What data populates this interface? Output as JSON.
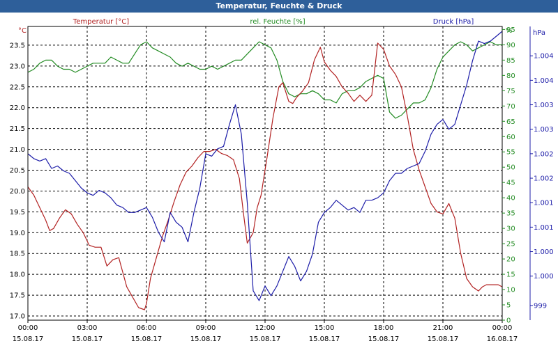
{
  "window": {
    "title": "Temperatur, Feuchte & Druck"
  },
  "chart_data": {
    "type": "line",
    "title": "Temperatur, Feuchte & Druck",
    "grid": true,
    "x_ticks": [
      {
        "time": "00:00",
        "date": "15.08.17"
      },
      {
        "time": "03:00",
        "date": "15.08.17"
      },
      {
        "time": "06:00",
        "date": "15.08.17"
      },
      {
        "time": "09:00",
        "date": "15.08.17"
      },
      {
        "time": "12:00",
        "date": "15.08.17"
      },
      {
        "time": "15:00",
        "date": "15.08.17"
      },
      {
        "time": "18:00",
        "date": "15.08.17"
      },
      {
        "time": "21:00",
        "date": "15.08.17"
      },
      {
        "time": "00:00",
        "date": "16.08.17"
      }
    ],
    "x_range_hours": [
      0,
      24
    ],
    "axes": {
      "temperature": {
        "label": "Temperatur [°C]",
        "unit": "°C",
        "range": [
          16.9,
          23.95
        ],
        "ticks": [
          "17.0",
          "17.5",
          "18.0",
          "18.5",
          "19.0",
          "19.5",
          "20.0",
          "20.5",
          "21.0",
          "21.5",
          "22.0",
          "22.5",
          "23.0",
          "23.5"
        ],
        "color": "#b22222"
      },
      "humidity": {
        "label": "rel. Feuchte [%]",
        "unit": "%",
        "range": [
          0,
          96
        ],
        "ticks": [
          "0",
          "5",
          "10",
          "15",
          "20",
          "25",
          "30",
          "35",
          "40",
          "45",
          "50",
          "55",
          "60",
          "65",
          "70",
          "75",
          "80",
          "85",
          "90",
          "95"
        ],
        "color": "#228b22"
      },
      "pressure": {
        "label": "Druck [hPa]",
        "unit": "hPa",
        "range": [
          998.6,
          1004.6
        ],
        "ticks": [
          {
            "value": 998.9,
            "label": "999"
          },
          {
            "value": 999.5,
            "label": "1.000"
          },
          {
            "value": 1000.0,
            "label": "1.000"
          },
          {
            "value": 1000.5,
            "label": "1.001"
          },
          {
            "value": 1001.0,
            "label": "1.001"
          },
          {
            "value": 1001.5,
            "label": "1.002"
          },
          {
            "value": 1002.0,
            "label": "1.002"
          },
          {
            "value": 1002.5,
            "label": "1.003"
          },
          {
            "value": 1003.0,
            "label": "1.003"
          },
          {
            "value": 1003.5,
            "label": "1.004"
          },
          {
            "value": 1004.0,
            "label": "1.004"
          }
        ],
        "color": "#1c1ca8"
      }
    },
    "series": [
      {
        "name": "Temperatur [°C]",
        "axis": "temperature",
        "color": "#b22222",
        "x": [
          0,
          0.3,
          0.6,
          0.9,
          1.1,
          1.3,
          1.6,
          1.9,
          2.2,
          2.5,
          2.8,
          3.1,
          3.4,
          3.7,
          4.0,
          4.3,
          4.6,
          5.0,
          5.3,
          5.6,
          5.9,
          6.0,
          6.2,
          6.5,
          6.8,
          7.1,
          7.4,
          7.7,
          8.0,
          8.3,
          8.6,
          8.9,
          9.2,
          9.5,
          9.8,
          10.1,
          10.4,
          10.7,
          10.9,
          11.1,
          11.4,
          11.6,
          11.8,
          12.1,
          12.4,
          12.7,
          12.9,
          13.2,
          13.4,
          13.6,
          13.9,
          14.2,
          14.5,
          14.8,
          15.0,
          15.3,
          15.6,
          15.9,
          16.2,
          16.5,
          16.8,
          17.1,
          17.4,
          17.7,
          18.0,
          18.3,
          18.6,
          18.9,
          19.2,
          19.5,
          19.8,
          20.1,
          20.4,
          20.7,
          21.0,
          21.3,
          21.6,
          21.9,
          22.2,
          22.5,
          22.8,
          23.0,
          23.2,
          23.4,
          23.6,
          23.8,
          24.0
        ],
        "values": [
          20.1,
          19.9,
          19.6,
          19.3,
          19.05,
          19.1,
          19.35,
          19.55,
          19.45,
          19.2,
          19.0,
          18.7,
          18.65,
          18.65,
          18.2,
          18.35,
          18.4,
          17.7,
          17.45,
          17.2,
          17.15,
          17.3,
          17.9,
          18.4,
          18.9,
          19.3,
          19.75,
          20.15,
          20.45,
          20.6,
          20.8,
          20.95,
          20.95,
          21.0,
          20.9,
          20.85,
          20.75,
          20.3,
          19.5,
          18.75,
          19.0,
          19.6,
          19.9,
          20.8,
          21.75,
          22.5,
          22.6,
          22.15,
          22.1,
          22.25,
          22.4,
          22.6,
          23.15,
          23.45,
          23.1,
          22.9,
          22.75,
          22.5,
          22.35,
          22.15,
          22.3,
          22.15,
          22.3,
          23.55,
          23.4,
          23.0,
          22.8,
          22.5,
          21.8,
          21.0,
          20.5,
          20.1,
          19.7,
          19.5,
          19.45,
          19.7,
          19.35,
          18.5,
          17.9,
          17.7,
          17.6,
          17.7,
          17.75,
          17.75,
          17.75,
          17.75,
          17.7
        ]
      },
      {
        "name": "rel. Feuchte [%]",
        "axis": "humidity",
        "color": "#228b22",
        "x": [
          0,
          0.3,
          0.6,
          0.9,
          1.2,
          1.5,
          1.8,
          2.1,
          2.4,
          2.7,
          3.0,
          3.3,
          3.6,
          3.9,
          4.2,
          4.5,
          4.8,
          5.1,
          5.4,
          5.7,
          6.0,
          6.3,
          6.6,
          6.9,
          7.2,
          7.5,
          7.8,
          8.1,
          8.4,
          8.7,
          9.0,
          9.3,
          9.6,
          9.9,
          10.2,
          10.5,
          10.8,
          11.1,
          11.4,
          11.7,
          12.0,
          12.3,
          12.6,
          12.9,
          13.2,
          13.5,
          13.8,
          14.1,
          14.4,
          14.7,
          15.0,
          15.3,
          15.6,
          15.9,
          16.2,
          16.5,
          16.8,
          17.1,
          17.4,
          17.7,
          18.0,
          18.3,
          18.6,
          18.9,
          19.2,
          19.5,
          19.8,
          20.1,
          20.4,
          20.7,
          21.0,
          21.3,
          21.6,
          21.9,
          22.2,
          22.5,
          22.8,
          23.1,
          23.4,
          23.7,
          24.0
        ],
        "values": [
          81,
          82,
          84,
          85,
          85,
          83,
          82,
          82,
          81,
          82,
          83,
          84,
          84,
          84,
          86,
          85,
          84,
          84,
          87,
          90,
          91,
          89,
          88,
          87,
          86,
          84,
          83,
          84,
          83,
          82,
          82,
          83,
          82,
          83,
          84,
          85,
          85,
          87,
          89,
          91,
          90,
          89,
          85,
          78,
          74,
          73,
          74,
          74,
          75,
          74,
          72,
          72,
          71,
          74,
          75,
          75,
          76,
          78,
          79,
          80,
          79,
          68,
          66,
          67,
          69,
          71,
          71,
          72,
          76,
          82,
          86,
          88,
          90,
          91,
          90,
          88,
          89,
          90,
          91,
          90,
          90
        ]
      },
      {
        "name": "Druck [hPa]",
        "axis": "pressure",
        "color": "#1c1ca8",
        "x": [
          0,
          0.3,
          0.6,
          0.9,
          1.2,
          1.5,
          1.8,
          2.1,
          2.4,
          2.7,
          3.0,
          3.3,
          3.6,
          3.9,
          4.2,
          4.5,
          4.8,
          5.1,
          5.4,
          5.7,
          6.0,
          6.3,
          6.6,
          6.9,
          7.2,
          7.5,
          7.8,
          8.1,
          8.4,
          8.7,
          9.0,
          9.3,
          9.6,
          9.9,
          10.2,
          10.5,
          10.8,
          11.1,
          11.4,
          11.7,
          12.0,
          12.3,
          12.6,
          12.9,
          13.2,
          13.5,
          13.8,
          14.1,
          14.4,
          14.7,
          15.0,
          15.3,
          15.6,
          15.9,
          16.2,
          16.5,
          16.8,
          17.1,
          17.4,
          17.7,
          18.0,
          18.3,
          18.6,
          18.9,
          19.2,
          19.5,
          19.8,
          20.1,
          20.4,
          20.7,
          21.0,
          21.3,
          21.6,
          21.9,
          22.2,
          22.5,
          22.8,
          23.1,
          23.4,
          23.7,
          24.0
        ],
        "values": [
          1002.0,
          1001.9,
          1001.85,
          1001.9,
          1001.7,
          1001.75,
          1001.65,
          1001.6,
          1001.45,
          1001.3,
          1001.2,
          1001.15,
          1001.25,
          1001.2,
          1001.1,
          1000.95,
          1000.9,
          1000.8,
          1000.8,
          1000.85,
          1000.9,
          1000.7,
          1000.4,
          1000.2,
          1000.8,
          1000.6,
          1000.5,
          1000.2,
          1000.8,
          1001.3,
          1002.0,
          1001.95,
          1002.1,
          1002.15,
          1002.6,
          1003.0,
          1002.4,
          1001.0,
          999.2,
          999.0,
          999.3,
          999.1,
          999.3,
          999.6,
          999.9,
          999.7,
          999.4,
          999.6,
          999.95,
          1000.6,
          1000.8,
          1000.9,
          1001.05,
          1000.95,
          1000.85,
          1000.9,
          1000.8,
          1001.05,
          1001.05,
          1001.1,
          1001.2,
          1001.45,
          1001.6,
          1001.6,
          1001.7,
          1001.75,
          1001.8,
          1002.05,
          1002.4,
          1002.6,
          1002.7,
          1002.5,
          1002.6,
          1003.0,
          1003.4,
          1003.9,
          1004.3,
          1004.25,
          1004.3,
          1004.4,
          1004.5
        ]
      }
    ]
  }
}
